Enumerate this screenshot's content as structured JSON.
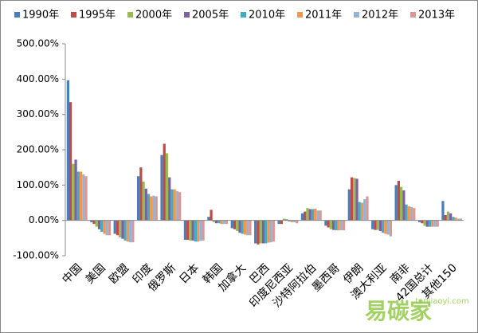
{
  "chart_data": {
    "type": "bar",
    "categories": [
      "中国",
      "美国",
      "欧盟",
      "印度",
      "俄罗斯",
      "日本",
      "韩国",
      "加拿大",
      "巴西",
      "印度尼西亚",
      "沙特阿拉伯",
      "墨西哥",
      "伊朗",
      "澳大利亚",
      "南非",
      "42国总计",
      "其他150"
    ],
    "series": [
      {
        "name": "1990年",
        "color": "#4a7ebb",
        "values": [
          397,
          -5,
          -38,
          125,
          185,
          -55,
          10,
          -22,
          -65,
          -10,
          20,
          -15,
          88,
          -25,
          100,
          -5,
          55
        ]
      },
      {
        "name": "1995年",
        "color": "#be4b48",
        "values": [
          335,
          -10,
          -42,
          150,
          217,
          -55,
          30,
          -25,
          -68,
          -10,
          25,
          -20,
          122,
          -27,
          112,
          -8,
          15
        ]
      },
      {
        "name": "2000年",
        "color": "#98b954",
        "values": [
          160,
          -18,
          -48,
          110,
          190,
          -57,
          -5,
          -30,
          -65,
          5,
          35,
          -25,
          120,
          -27,
          95,
          -15,
          25
        ]
      },
      {
        "name": "2005年",
        "color": "#7d60a0",
        "values": [
          172,
          -25,
          -52,
          90,
          122,
          -57,
          -8,
          -35,
          -65,
          3,
          32,
          -27,
          118,
          -30,
          85,
          -18,
          20
        ]
      },
      {
        "name": "2010年",
        "color": "#46aac5",
        "values": [
          138,
          -32,
          -57,
          75,
          88,
          -60,
          -8,
          -38,
          -65,
          -3,
          32,
          -28,
          52,
          -35,
          45,
          -18,
          10
        ]
      },
      {
        "name": "2011年",
        "color": "#f79646",
        "values": [
          138,
          -38,
          -60,
          68,
          88,
          -60,
          -10,
          -40,
          -63,
          -5,
          33,
          -28,
          50,
          -38,
          40,
          -18,
          8
        ]
      },
      {
        "name": "2012年",
        "color": "#95b3d7",
        "values": [
          130,
          -42,
          -62,
          70,
          83,
          -58,
          -10,
          -42,
          -62,
          -5,
          28,
          -28,
          60,
          -40,
          38,
          -18,
          5
        ]
      },
      {
        "name": "2013年",
        "color": "#d99795",
        "values": [
          125,
          -42,
          -62,
          68,
          80,
          -57,
          -10,
          -42,
          -60,
          -8,
          28,
          -28,
          68,
          -45,
          35,
          -18,
          5
        ]
      }
    ],
    "ylim": [
      -100,
      500
    ],
    "yticks": [
      {
        "value": -100,
        "label": "-100.00%"
      },
      {
        "value": 0,
        "label": "0.00%"
      },
      {
        "value": 100,
        "label": "100.00%"
      },
      {
        "value": 200,
        "label": "200.00%"
      },
      {
        "value": 300,
        "label": "300.00%"
      },
      {
        "value": 400,
        "label": "400.00%"
      },
      {
        "value": 500,
        "label": "500.00%"
      }
    ],
    "grid": false,
    "legend": "top",
    "watermark": [
      "易碳家",
      "tanjiaoyi.com"
    ]
  }
}
